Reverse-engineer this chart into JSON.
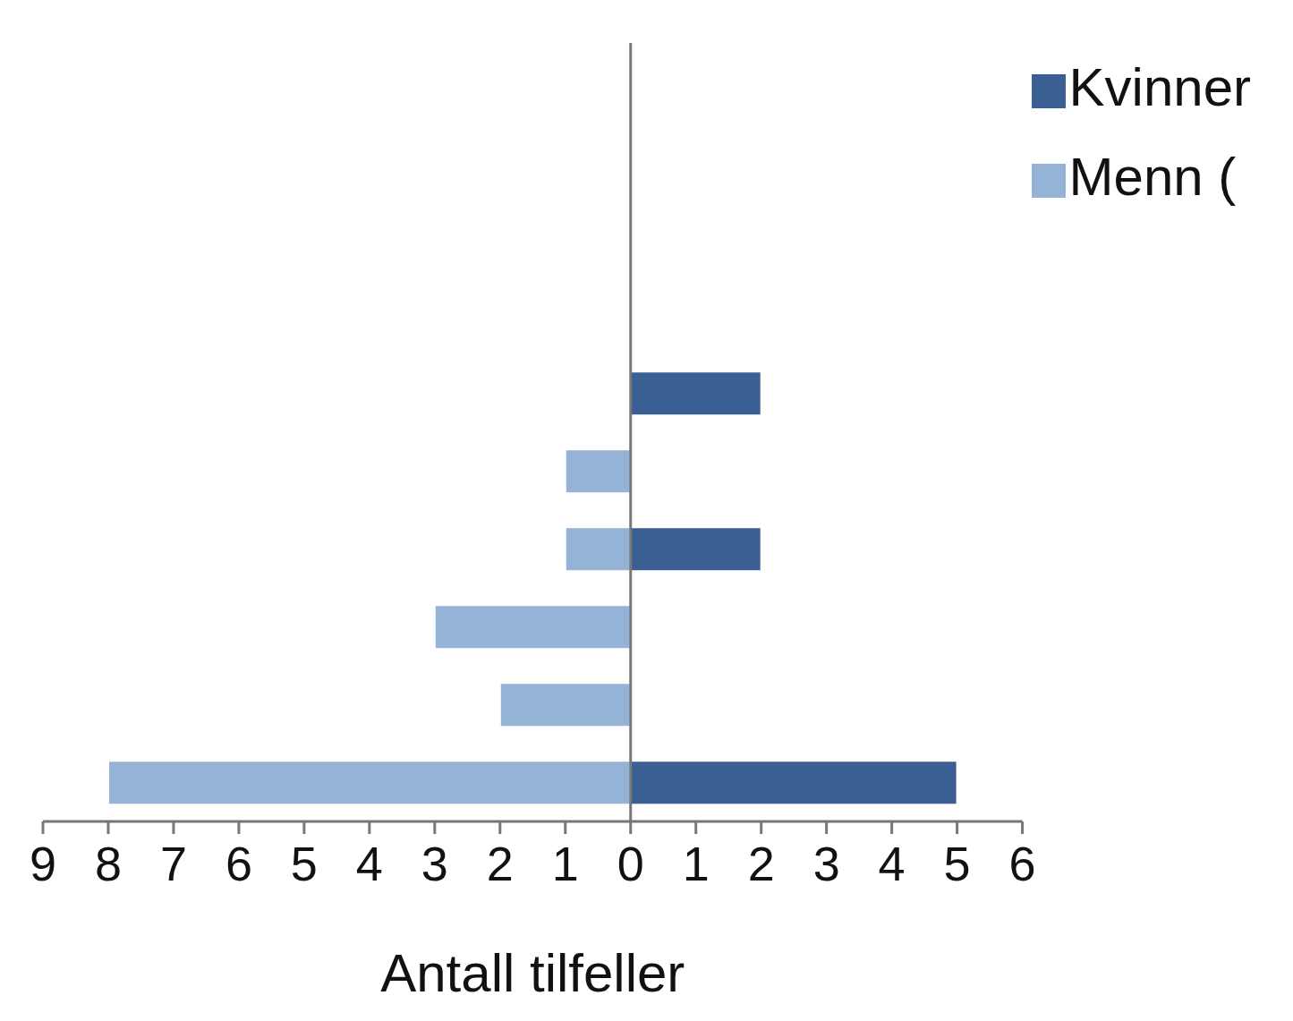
{
  "chart_data": {
    "type": "bar",
    "orientation": "horizontal",
    "stacked": true,
    "xlabel": "Antall tilfeller",
    "categories": [
      null,
      null,
      null,
      null,
      null,
      null,
      null,
      null,
      null,
      null
    ],
    "series": [
      {
        "name": "Kvinner",
        "color": "#3a5f93",
        "values": [
          null,
          null,
          null,
          null,
          2,
          null,
          2,
          null,
          null,
          5
        ]
      },
      {
        "name": "Menn (",
        "color": "#95b3d7",
        "values": [
          null,
          null,
          null,
          null,
          null,
          -1,
          -1,
          -3,
          -2,
          -8
        ]
      }
    ],
    "xlim": [
      -9,
      6
    ],
    "xticks": [
      {
        "value": -9,
        "label": "9"
      },
      {
        "value": -8,
        "label": "8"
      },
      {
        "value": -7,
        "label": "7"
      },
      {
        "value": -6,
        "label": "6"
      },
      {
        "value": -5,
        "label": "5"
      },
      {
        "value": -4,
        "label": "4"
      },
      {
        "value": -3,
        "label": "3"
      },
      {
        "value": -2,
        "label": "2"
      },
      {
        "value": -1,
        "label": "1"
      },
      0,
      1,
      2,
      3,
      4,
      5,
      6
    ],
    "tick_labels": "x",
    "legend": "top right"
  }
}
